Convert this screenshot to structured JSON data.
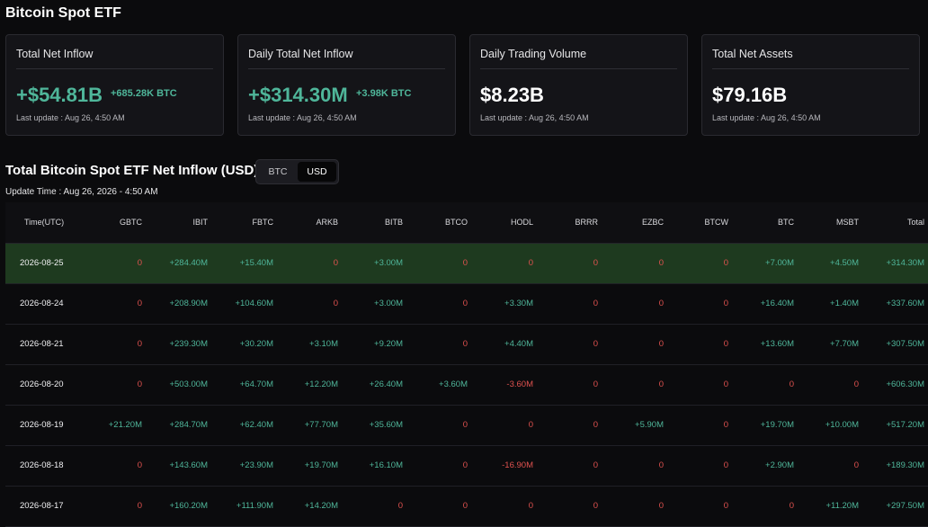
{
  "page": {
    "title": "Bitcoin Spot ETF"
  },
  "cards": [
    {
      "title": "Total Net Inflow",
      "value": "+$54.81B",
      "sub": "+685.28K BTC",
      "update": "Last update : Aug 26, 4:50 AM"
    },
    {
      "title": "Daily Total Net Inflow",
      "value": "+$314.30M",
      "sub": "+3.98K BTC",
      "update": "Last update : Aug 26, 4:50 AM"
    },
    {
      "title": "Daily Trading Volume",
      "value": "$8.23B",
      "update": "Last update : Aug 26, 4:50 AM"
    },
    {
      "title": "Total Net Assets",
      "value": "$79.16B",
      "update": "Last update : Aug 26, 4:50 AM"
    }
  ],
  "section": {
    "title": "Total Bitcoin Spot ETF Net Inflow (USD)",
    "toggle": {
      "btc": "BTC",
      "usd": "USD",
      "selected": "USD"
    },
    "update_time": "Update Time : Aug 26, 2026 - 4:50 AM"
  },
  "colors": {
    "positive": "#4fb69a",
    "negative": "#e0524f",
    "highlight_row": "#1e3a1f"
  },
  "table": {
    "headers": [
      "Time(UTC)",
      "GBTC",
      "IBIT",
      "FBTC",
      "ARKB",
      "BITB",
      "BTCO",
      "HODL",
      "BRRR",
      "EZBC",
      "BTCW",
      "BTC",
      "MSBT",
      "Total"
    ],
    "rows": [
      [
        "2026-08-25",
        "0",
        "+284.40M",
        "+15.40M",
        "0",
        "+3.00M",
        "0",
        "0",
        "0",
        "0",
        "0",
        "+7.00M",
        "+4.50M",
        "+314.30M"
      ],
      [
        "2026-08-24",
        "0",
        "+208.90M",
        "+104.60M",
        "0",
        "+3.00M",
        "0",
        "+3.30M",
        "0",
        "0",
        "0",
        "+16.40M",
        "+1.40M",
        "+337.60M"
      ],
      [
        "2026-08-21",
        "0",
        "+239.30M",
        "+30.20M",
        "+3.10M",
        "+9.20M",
        "0",
        "+4.40M",
        "0",
        "0",
        "0",
        "+13.60M",
        "+7.70M",
        "+307.50M"
      ],
      [
        "2026-08-20",
        "0",
        "+503.00M",
        "+64.70M",
        "+12.20M",
        "+26.40M",
        "+3.60M",
        "-3.60M",
        "0",
        "0",
        "0",
        "0",
        "0",
        "+606.30M"
      ],
      [
        "2026-08-19",
        "+21.20M",
        "+284.70M",
        "+62.40M",
        "+77.70M",
        "+35.60M",
        "0",
        "0",
        "0",
        "+5.90M",
        "0",
        "+19.70M",
        "+10.00M",
        "+517.20M"
      ],
      [
        "2026-08-18",
        "0",
        "+143.60M",
        "+23.90M",
        "+19.70M",
        "+16.10M",
        "0",
        "-16.90M",
        "0",
        "0",
        "0",
        "+2.90M",
        "0",
        "+189.30M"
      ],
      [
        "2026-08-17",
        "0",
        "+160.20M",
        "+111.90M",
        "+14.20M",
        "0",
        "0",
        "0",
        "0",
        "0",
        "0",
        "0",
        "+11.20M",
        "+297.50M"
      ]
    ]
  }
}
